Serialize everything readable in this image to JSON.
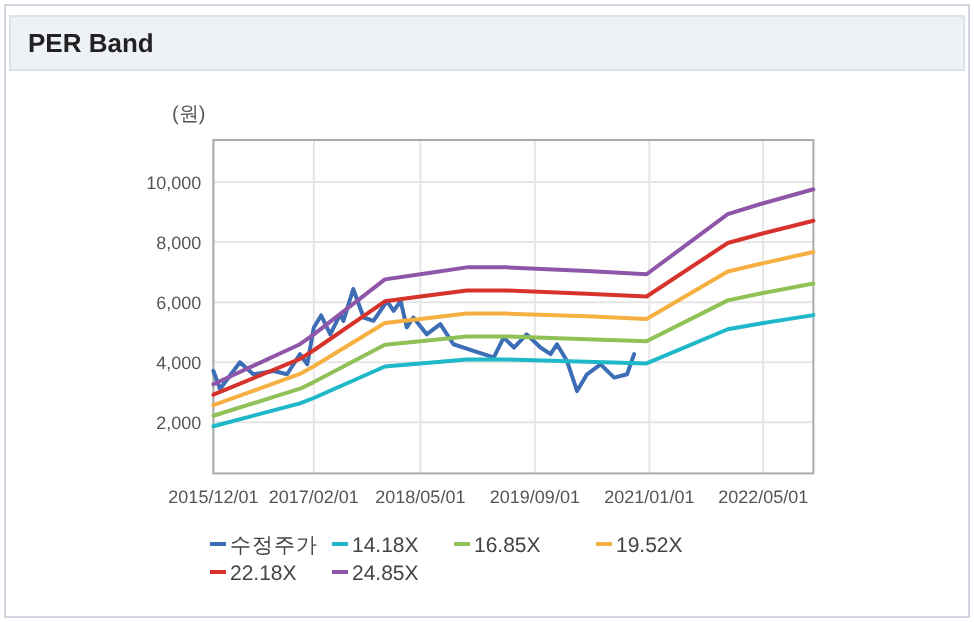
{
  "chart_data": {
    "type": "line",
    "title": "PER Band",
    "ylabel": "(원)",
    "xlim": [
      "2015-12-01",
      "2022-12-01"
    ],
    "ylim": [
      300,
      11400
    ],
    "xticks": [
      {
        "value": "2015-12-01",
        "label": "2015/12/01"
      },
      {
        "value": "2017-02-01",
        "label": "2017/02/01"
      },
      {
        "value": "2018-05-01",
        "label": "2018/05/01"
      },
      {
        "value": "2019-09-01",
        "label": "2019/09/01"
      },
      {
        "value": "2021-01-01",
        "label": "2021/01/01"
      },
      {
        "value": "2022-05-01",
        "label": "2022/05/01"
      }
    ],
    "yticks": [
      {
        "value": 2000,
        "label": "2,000"
      },
      {
        "value": 4000,
        "label": "4,000"
      },
      {
        "value": 6000,
        "label": "6,000"
      },
      {
        "value": 8000,
        "label": "8,000"
      },
      {
        "value": 10000,
        "label": "10,000"
      }
    ],
    "grid": true,
    "legend": "bottom",
    "series": [
      {
        "name": "수정주가",
        "color": "#3d6eb5",
        "x": [
          "2015-12-01",
          "2015-12-29",
          "2016-03-23",
          "2016-05-19",
          "2016-08-13",
          "2016-10-10",
          "2016-12-04",
          "2017-01-04",
          "2017-02-01",
          "2017-03-04",
          "2017-04-12",
          "2017-05-25",
          "2017-06-07",
          "2017-07-19",
          "2017-09-01",
          "2017-10-13",
          "2017-12-10",
          "2018-01-07",
          "2018-02-06",
          "2018-03-04",
          "2018-04-01",
          "2018-05-28",
          "2018-07-25",
          "2018-09-19",
          "2018-12-13",
          "2019-03-10",
          "2019-04-21",
          "2019-06-04",
          "2019-07-28",
          "2019-09-25",
          "2019-11-07",
          "2019-12-04",
          "2020-01-16",
          "2020-02-28",
          "2020-04-10",
          "2020-06-07",
          "2020-08-04",
          "2020-09-28",
          "2020-10-28"
        ],
        "values": [
          3710,
          3110,
          4000,
          3600,
          3710,
          3600,
          4270,
          3930,
          5160,
          5560,
          4930,
          5600,
          5380,
          6440,
          5490,
          5380,
          6040,
          5710,
          6040,
          5160,
          5490,
          4930,
          5270,
          4600,
          4380,
          4160,
          4820,
          4490,
          4930,
          4490,
          4270,
          4600,
          4040,
          3040,
          3600,
          3930,
          3490,
          3600,
          4270
        ]
      },
      {
        "name": "14.18X",
        "color": "#1fb8c9",
        "x": [
          "2015-12-01",
          "2016-12-04",
          "2017-02-01",
          "2017-12-01",
          "2018-05-01",
          "2018-11-15",
          "2019-05-01",
          "2020-04-10",
          "2020-12-20",
          "2021-12-01",
          "2022-04-20",
          "2022-12-01"
        ],
        "values": [
          1870,
          2630,
          2810,
          3860,
          3960,
          4090,
          4090,
          4020,
          3960,
          5100,
          5290,
          5570
        ]
      },
      {
        "name": "16.85X",
        "color": "#8fc156",
        "x": [
          "2015-12-01",
          "2016-12-04",
          "2017-02-01",
          "2017-12-01",
          "2018-05-01",
          "2018-11-15",
          "2019-05-01",
          "2020-04-10",
          "2020-12-20",
          "2021-12-01",
          "2022-04-20",
          "2022-12-01"
        ],
        "values": [
          2220,
          3120,
          3340,
          4580,
          4700,
          4860,
          4860,
          4770,
          4700,
          6060,
          6290,
          6620
        ]
      },
      {
        "name": "19.52X",
        "color": "#f5b041",
        "x": [
          "2015-12-01",
          "2016-12-04",
          "2017-02-01",
          "2017-12-01",
          "2018-05-01",
          "2018-11-15",
          "2019-05-01",
          "2020-04-10",
          "2020-12-20",
          "2021-12-01",
          "2022-04-20",
          "2022-12-01"
        ],
        "values": [
          2570,
          3610,
          3870,
          5310,
          5440,
          5620,
          5620,
          5530,
          5440,
          7020,
          7280,
          7670
        ]
      },
      {
        "name": "22.18X",
        "color": "#d6332c",
        "x": [
          "2015-12-01",
          "2016-12-04",
          "2017-02-01",
          "2017-12-01",
          "2018-05-01",
          "2018-11-15",
          "2019-05-01",
          "2020-04-10",
          "2020-12-20",
          "2021-12-01",
          "2022-04-20",
          "2022-12-01"
        ],
        "values": [
          2920,
          4110,
          4400,
          6030,
          6190,
          6390,
          6390,
          6280,
          6190,
          7970,
          8270,
          8710
        ]
      },
      {
        "name": "24.85X",
        "color": "#8e55a8",
        "x": [
          "2015-12-01",
          "2016-12-04",
          "2017-02-01",
          "2017-12-01",
          "2018-05-01",
          "2018-11-15",
          "2019-05-01",
          "2020-04-10",
          "2020-12-20",
          "2021-12-01",
          "2022-04-20",
          "2022-12-01"
        ],
        "values": [
          3270,
          4600,
          4930,
          6760,
          6930,
          7160,
          7160,
          7040,
          6930,
          8930,
          9270,
          9760
        ]
      }
    ]
  }
}
